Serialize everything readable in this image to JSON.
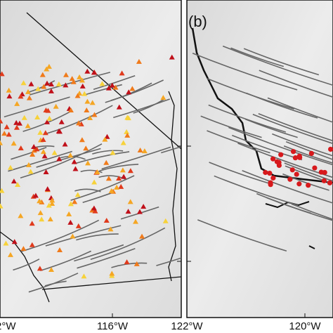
{
  "panels": [
    {
      "x_labels": [
        "2°W",
        "116°W"
      ]
    },
    {
      "label": "(b)",
      "x_labels": [
        "122°W",
        "120°W"
      ]
    }
  ]
}
